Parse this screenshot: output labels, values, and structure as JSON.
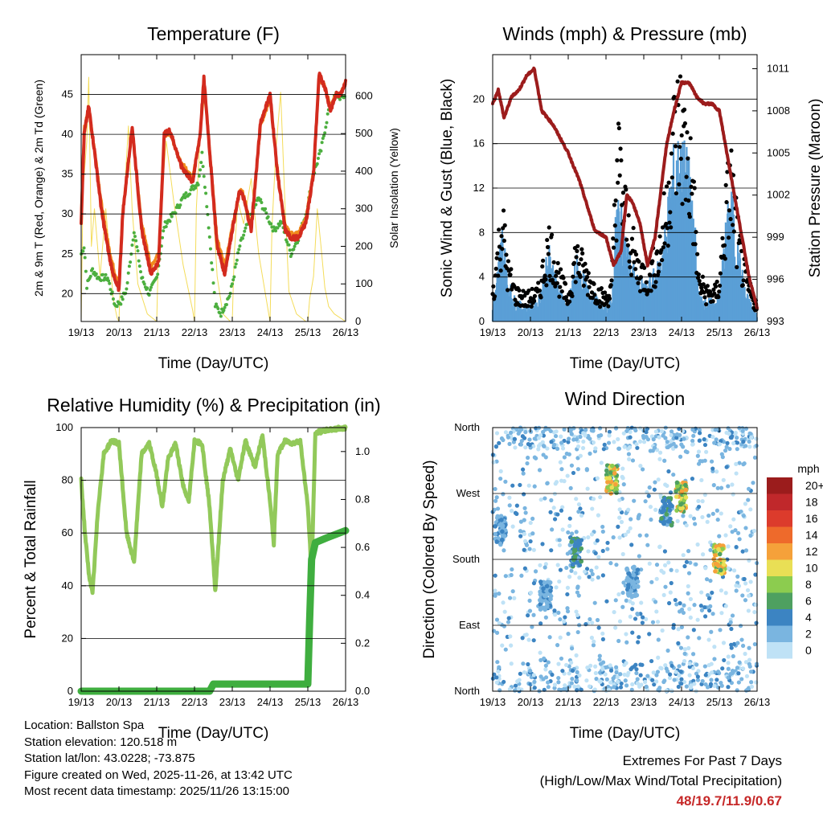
{
  "x_ticks": [
    "19/13",
    "20/13",
    "21/13",
    "22/13",
    "23/13",
    "24/13",
    "25/13",
    "26/13"
  ],
  "x_label": "Time (Day/UTC)",
  "colors": {
    "red": "#d32b1e",
    "orange": "#f08a1d",
    "green": "#4caf3f",
    "yellow": "#f4dc5a",
    "blue": "#5a9fd6",
    "maroon": "#9c1c1c",
    "rh": "#92c95a",
    "precip": "#3fae3f",
    "extremes": "#c62828"
  },
  "chart_data": [
    {
      "id": "temperature",
      "type": "line",
      "title": "Temperature (F)",
      "xlabel": "Time (Day/UTC)",
      "ylabel": "2m & 9m T (Red, Orange) & 2m Td (Green)",
      "y2label": "Solar Insolation (Yellow)",
      "ylim": [
        16.5,
        50
      ],
      "y_ticks": [
        20,
        25,
        30,
        35,
        40,
        45
      ],
      "y2lim": [
        0,
        710
      ],
      "y2_ticks": [
        0,
        100,
        200,
        300,
        400,
        500,
        600
      ],
      "x_range": [
        0,
        7
      ],
      "series": [
        {
          "name": "2m T",
          "color": "red",
          "x": [
            0,
            0.08,
            0.2,
            0.35,
            0.55,
            0.75,
            0.9,
            1.0,
            1.1,
            1.35,
            1.6,
            1.85,
            2.05,
            2.2,
            2.35,
            2.65,
            2.95,
            3.15,
            3.25,
            3.4,
            3.6,
            3.8,
            4.0,
            4.2,
            4.3,
            4.5,
            4.75,
            5.0,
            5.2,
            5.4,
            5.55,
            5.75,
            5.95,
            6.15,
            6.3,
            6.45,
            6.6,
            6.75,
            6.85,
            7.0
          ],
          "y": [
            29,
            40,
            43.5,
            38,
            30,
            24.5,
            21.5,
            20.5,
            30,
            41,
            28,
            22.5,
            24,
            40,
            40.5,
            36,
            34,
            40,
            47,
            38,
            26,
            22.5,
            28,
            33,
            32,
            28,
            41.5,
            45,
            35,
            28,
            27,
            27,
            29,
            35,
            47.5,
            46,
            43,
            45,
            45,
            46.5
          ]
        },
        {
          "name": "9m T",
          "color": "orange",
          "x": [
            0,
            0.08,
            0.2,
            0.35,
            0.55,
            0.75,
            0.9,
            1.0,
            1.1,
            1.35,
            1.6,
            1.85,
            2.05,
            2.2,
            2.35,
            2.65,
            2.95,
            3.15,
            3.25,
            3.4,
            3.6,
            3.8,
            4.0,
            4.2,
            4.3,
            4.5,
            4.75,
            5.0,
            5.2,
            5.4,
            5.55,
            5.75,
            5.95,
            6.15,
            6.3,
            6.45,
            6.6,
            6.75,
            6.85,
            7.0
          ],
          "y": [
            30,
            41,
            43,
            38.5,
            31,
            25.5,
            22.5,
            21.5,
            30.5,
            40.5,
            29,
            23.5,
            25,
            40,
            40,
            36.5,
            34.5,
            40,
            46.5,
            38.5,
            27,
            23.5,
            28.5,
            33,
            32.5,
            28.5,
            41,
            44.5,
            35.5,
            28.5,
            27.5,
            27.5,
            29.5,
            35.5,
            47,
            46,
            43.5,
            45,
            45,
            46.5
          ]
        },
        {
          "name": "2m Td",
          "color": "green",
          "x": [
            0,
            0.08,
            0.15,
            0.3,
            0.45,
            0.7,
            0.9,
            1.05,
            1.2,
            1.4,
            1.6,
            1.8,
            2.0,
            2.2,
            2.45,
            2.7,
            2.9,
            3.1,
            3.2,
            3.35,
            3.55,
            3.7,
            3.95,
            4.2,
            4.5,
            4.7,
            4.9,
            5.1,
            5.3,
            5.55,
            5.75,
            5.95,
            6.15,
            6.35,
            6.55,
            6.75,
            6.9,
            7.0
          ],
          "y": [
            25,
            26,
            21,
            23,
            22,
            22,
            18.5,
            19,
            20.5,
            28,
            22,
            20,
            22,
            28.5,
            30,
            32,
            33,
            34,
            37.5,
            30,
            18.5,
            17.5,
            20,
            26,
            30,
            32,
            30,
            28,
            29,
            25,
            27,
            30,
            35,
            38,
            43,
            45,
            44.5,
            45
          ]
        },
        {
          "name": "Solar Insolation",
          "color": "yellow",
          "axis": "y2",
          "x": [
            0,
            0.05,
            0.15,
            0.2,
            0.27,
            0.35,
            0.5,
            0.65,
            0.75,
            0.85,
            0.95,
            1.0,
            1.05,
            1.15,
            1.25,
            1.35,
            1.5,
            1.75,
            2.0,
            2.05,
            2.15,
            2.25,
            2.45,
            2.7,
            2.95,
            3.0,
            3.05,
            3.15,
            3.3,
            3.45,
            3.6,
            3.75,
            3.95,
            4.0,
            4.05,
            4.15,
            4.3,
            4.5,
            4.7,
            4.95,
            5.0,
            5.05,
            5.15,
            5.28,
            5.4,
            5.5,
            5.6,
            5.7,
            5.95,
            6.0,
            6.05,
            6.15,
            6.25,
            6.35,
            6.45,
            6.55,
            6.7,
            7.0
          ],
          "y": [
            0,
            350,
            480,
            650,
            200,
            300,
            120,
            300,
            180,
            60,
            10,
            0,
            150,
            350,
            520,
            300,
            100,
            20,
            0,
            200,
            350,
            480,
            320,
            150,
            30,
            0,
            300,
            500,
            620,
            380,
            120,
            20,
            0,
            0,
            180,
            320,
            260,
            380,
            180,
            30,
            0,
            250,
            450,
            610,
            300,
            80,
            50,
            20,
            0,
            0,
            60,
            120,
            300,
            200,
            90,
            40,
            20,
            0
          ]
        }
      ]
    },
    {
      "id": "winds",
      "type": "scatter",
      "title": "Winds (mph) & Pressure (mb)",
      "xlabel": "Time (Day/UTC)",
      "ylabel": "Sonic Wind & Gust (Blue, Black)",
      "y2label": "Station Pressure (Maroon)",
      "ylim": [
        0,
        24
      ],
      "y_ticks": [
        0,
        4,
        8,
        12,
        16,
        20
      ],
      "y2lim": [
        993,
        1012
      ],
      "y2_ticks": [
        993,
        996,
        999,
        1002,
        1005,
        1008,
        1011
      ],
      "x_range": [
        0,
        7
      ],
      "series": [
        {
          "name": "Wind (blue)",
          "color": "blue",
          "x": [
            0,
            0.1,
            0.25,
            0.4,
            0.6,
            0.9,
            1.2,
            1.5,
            1.8,
            2.0,
            2.2,
            2.5,
            2.8,
            3.0,
            3.15,
            3.3,
            3.5,
            3.8,
            4.1,
            4.4,
            4.6,
            4.75,
            4.95,
            5.15,
            5.3,
            5.45,
            5.7,
            5.9,
            6.0,
            6.15,
            6.3,
            6.5,
            6.7,
            6.9,
            7.0
          ],
          "y": [
            1.5,
            3,
            6.5,
            3,
            1.5,
            1,
            1.5,
            5,
            2,
            1,
            4.5,
            2.5,
            1.5,
            1,
            1.5,
            9,
            6,
            3,
            2.5,
            4,
            7,
            11,
            12,
            11,
            9,
            2,
            1.5,
            1.5,
            2,
            6,
            9,
            5,
            2,
            1,
            0.5
          ]
        },
        {
          "name": "Gust (black)",
          "color": "black",
          "x": [
            0,
            0.1,
            0.25,
            0.4,
            0.6,
            0.9,
            1.2,
            1.5,
            1.8,
            2.0,
            2.2,
            2.5,
            2.8,
            3.0,
            3.15,
            3.3,
            3.5,
            3.8,
            4.1,
            4.4,
            4.6,
            4.75,
            4.95,
            5.15,
            5.3,
            5.45,
            5.7,
            5.9,
            6.0,
            6.15,
            6.3,
            6.5,
            6.7,
            6.9,
            7.0
          ],
          "y": [
            2.5,
            5,
            9,
            4.5,
            2.5,
            2,
            2.5,
            7,
            3.5,
            2,
            6,
            4,
            2.5,
            2,
            3,
            15,
            10,
            5,
            4,
            6,
            10,
            16,
            18,
            15,
            12,
            3.5,
            2.5,
            2.5,
            3.5,
            9,
            13,
            7,
            3.5,
            2,
            1.5
          ]
        },
        {
          "name": "Station Pressure",
          "color": "maroon",
          "axis": "y2",
          "x": [
            0,
            0.15,
            0.3,
            0.5,
            0.7,
            0.9,
            1.1,
            1.3,
            1.6,
            2.0,
            2.3,
            2.7,
            3.0,
            3.2,
            3.4,
            3.55,
            3.7,
            3.9,
            4.1,
            4.3,
            4.6,
            4.8,
            5.0,
            5.2,
            5.4,
            5.6,
            5.8,
            6.0,
            6.2,
            6.4,
            6.6,
            6.8,
            7.0
          ],
          "y": [
            1008.5,
            1009.5,
            1007.5,
            1009,
            1009.5,
            1010.5,
            1011,
            1008,
            1007,
            1005,
            1003,
            999.5,
            999,
            997,
            998,
            1002,
            1001.5,
            1000,
            997,
            999,
            1005.5,
            1008,
            1010,
            1010,
            1009,
            1008.5,
            1008.5,
            1008,
            1005,
            1002,
            999,
            996,
            994
          ]
        }
      ]
    },
    {
      "id": "humidity",
      "type": "line",
      "title": "Relative Humidity (%) & Precipitation (in)",
      "xlabel": "Time (Day/UTC)",
      "ylabel": "Percent & Total Rainfall",
      "ylim": [
        0,
        100
      ],
      "y_ticks": [
        0,
        20,
        40,
        60,
        80,
        100
      ],
      "y2lim": [
        0,
        1.1
      ],
      "y2_ticks": [
        0.0,
        0.2,
        0.4,
        0.6,
        0.8,
        1.0
      ],
      "x_range": [
        0,
        7
      ],
      "series": [
        {
          "name": "Relative Humidity",
          "color": "rh",
          "x": [
            0,
            0.1,
            0.2,
            0.3,
            0.45,
            0.6,
            0.8,
            1.0,
            1.2,
            1.4,
            1.6,
            1.8,
            2.0,
            2.15,
            2.3,
            2.5,
            2.7,
            2.85,
            3.0,
            3.2,
            3.4,
            3.55,
            3.75,
            3.95,
            4.15,
            4.35,
            4.6,
            4.8,
            5.0,
            5.1,
            5.2,
            5.4,
            5.6,
            5.8,
            6.0,
            6.1,
            6.2,
            6.5,
            7.0
          ],
          "y": [
            80,
            60,
            45,
            37,
            70,
            90,
            95,
            94,
            60,
            49,
            90,
            94,
            82,
            70,
            88,
            94,
            78,
            72,
            95,
            94,
            70,
            38,
            80,
            92,
            80,
            95,
            85,
            97,
            72,
            56,
            90,
            95,
            94,
            95,
            70,
            45,
            98,
            99,
            100
          ]
        },
        {
          "name": "Total Precipitation",
          "color": "precip",
          "axis": "y2",
          "x": [
            0,
            3.4,
            3.5,
            4.0,
            6.0,
            6.05,
            6.1,
            6.2,
            6.5,
            7.0
          ],
          "y": [
            0,
            0,
            0.03,
            0.03,
            0.03,
            0.3,
            0.55,
            0.62,
            0.64,
            0.67
          ]
        }
      ]
    },
    {
      "id": "wind_direction",
      "type": "scatter",
      "title": "Wind Direction",
      "xlabel": "Time (Day/UTC)",
      "ylabel": "Direction (Colored By Speed)",
      "y_ticks": [
        "North",
        "East",
        "South",
        "West",
        "North"
      ],
      "ylim": [
        0,
        360
      ],
      "x_range": [
        0,
        7
      ],
      "legend_title": "mph",
      "legend_labels": [
        "20+",
        "18",
        "16",
        "14",
        "12",
        "10",
        "8",
        "6",
        "4",
        "2",
        "0"
      ],
      "legend_colors": [
        "#9b1c1c",
        "#c0282b",
        "#dc3b2c",
        "#ee6a2b",
        "#f5a13a",
        "#e9df55",
        "#8ccc4f",
        "#4ea060",
        "#3c84c2",
        "#7ab5e0",
        "#bfe2f6"
      ],
      "clusters": [
        {
          "x": 3.15,
          "dir": 290,
          "speed": 10
        },
        {
          "x": 5.0,
          "dir": 265,
          "speed": 10
        },
        {
          "x": 4.6,
          "dir": 245,
          "speed": 5
        },
        {
          "x": 6.0,
          "dir": 180,
          "speed": 10
        },
        {
          "x": 2.2,
          "dir": 190,
          "speed": 5
        },
        {
          "x": 0.2,
          "dir": 220,
          "speed": 3
        },
        {
          "x": 1.4,
          "dir": 130,
          "speed": 3
        },
        {
          "x": 3.7,
          "dir": 150,
          "speed": 3
        }
      ]
    }
  ],
  "info": {
    "location": "Location: Ballston Spa",
    "elevation": "Station elevation: 120.518 m",
    "latlon": "Station lat/lon: 43.0228; -73.875",
    "created": "Figure created on Wed, 2025-11-26, at 13:42 UTC",
    "recent": "Most recent data timestamp: 2025/11/26 13:15:00"
  },
  "extremes": {
    "title": "Extremes For Past 7 Days",
    "subtitle": "(High/Low/Max Wind/Total Precipitation)",
    "values": "48/19.7/11.9/0.67"
  }
}
